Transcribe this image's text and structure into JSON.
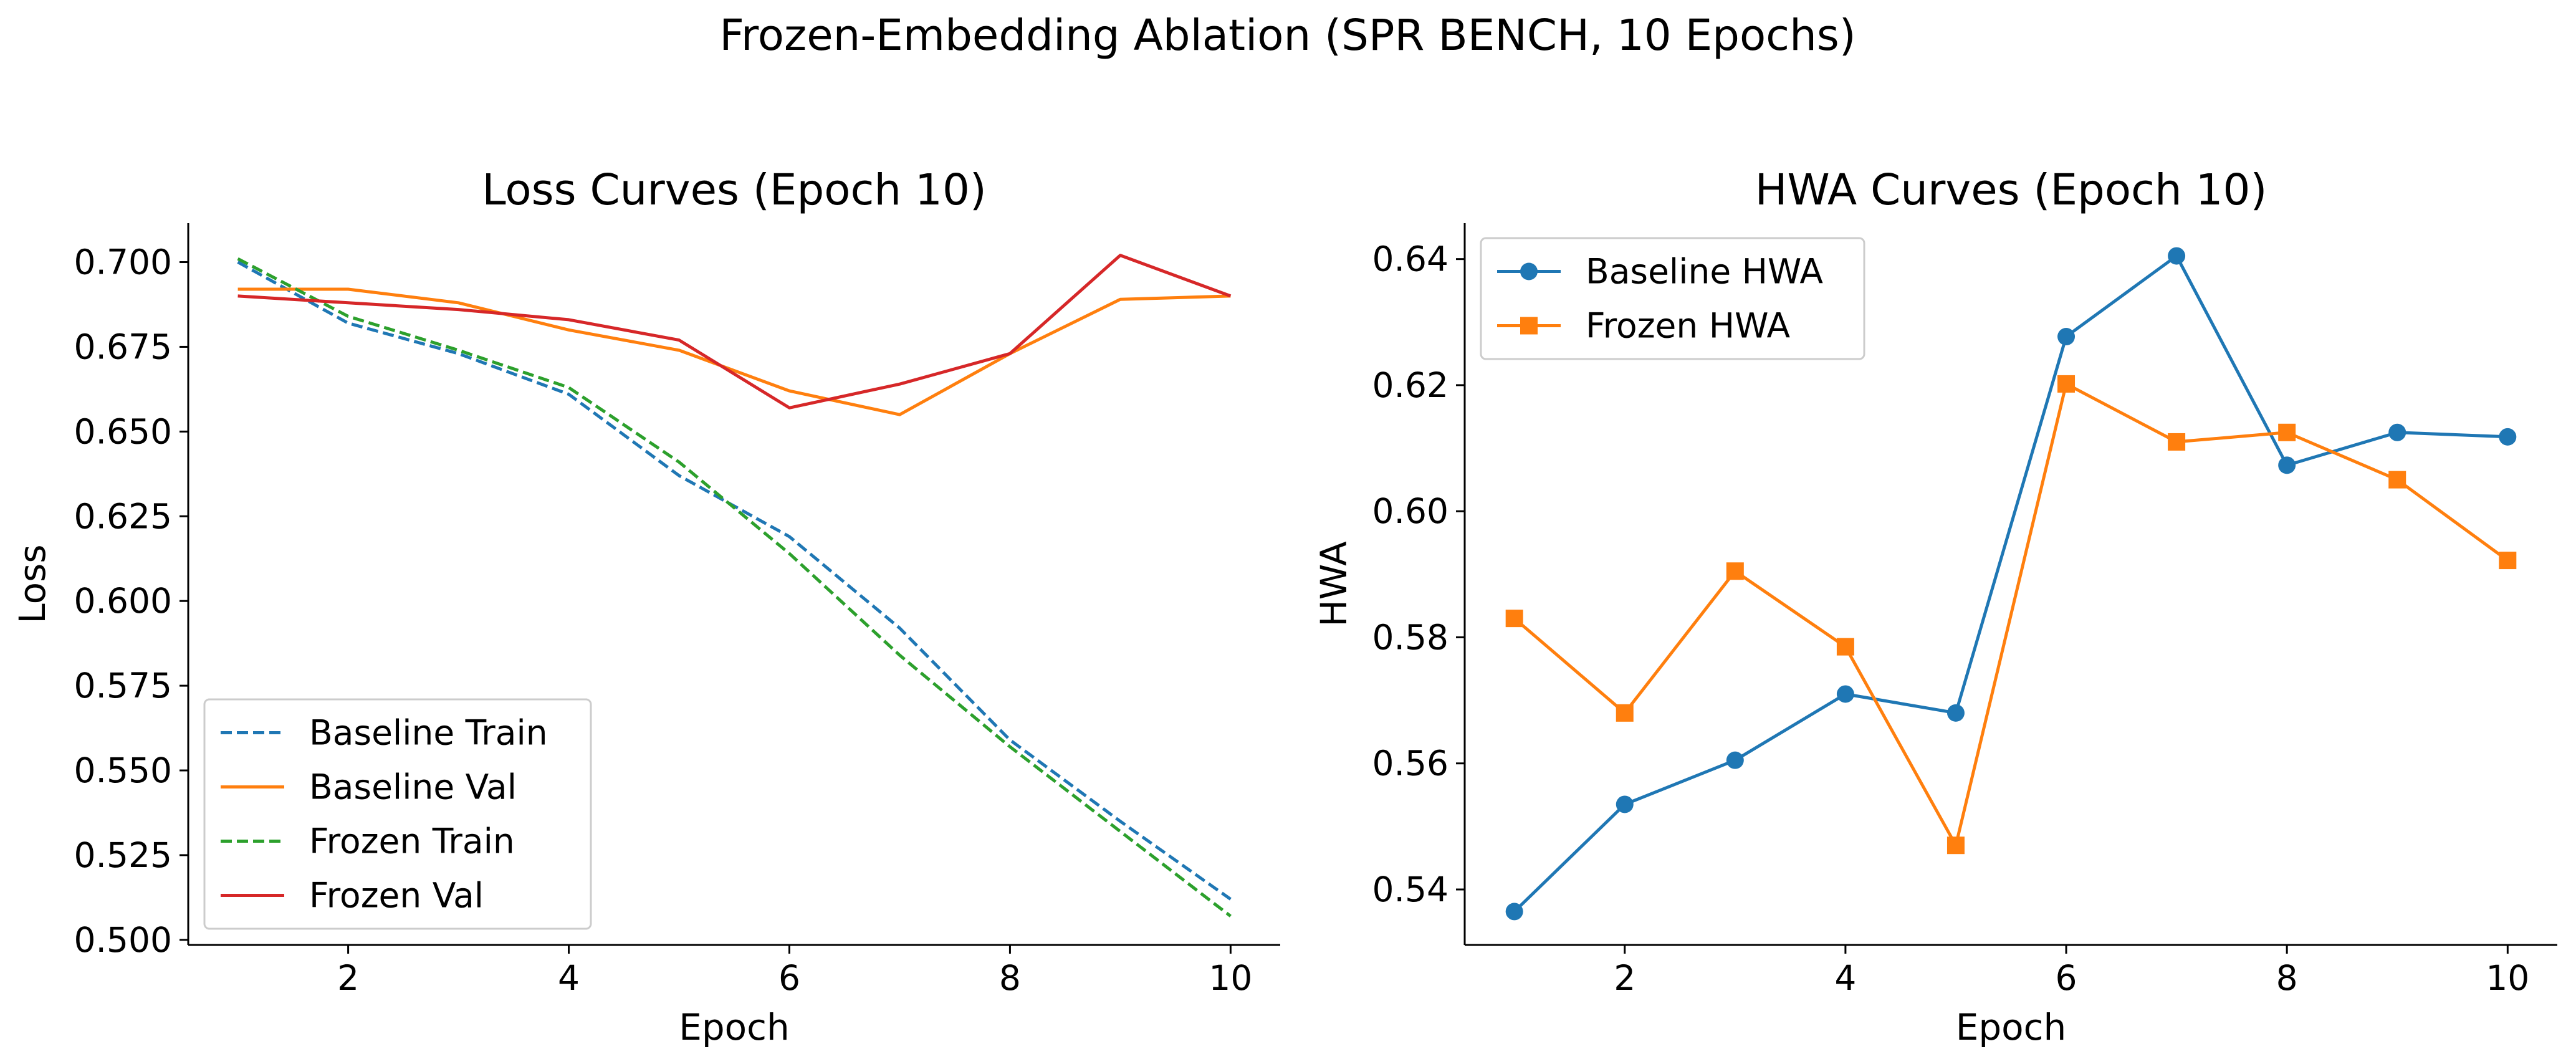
{
  "figure": {
    "suptitle": "Frozen-Embedding Ablation (SPR BENCH, 10 Epochs)"
  },
  "colors": {
    "blue": "#1f77b4",
    "orange": "#ff7f0e",
    "green": "#2ca02c",
    "red": "#d62728"
  },
  "chart_data": [
    {
      "type": "line",
      "title": "Loss Curves (Epoch 10)",
      "xlabel": "Epoch",
      "ylabel": "Loss",
      "xlim": [
        0.55,
        10.45
      ],
      "ylim": [
        0.4985,
        0.7115
      ],
      "xticks": [
        2,
        4,
        6,
        8,
        10
      ],
      "yticks": [
        0.5,
        0.525,
        0.55,
        0.575,
        0.6,
        0.625,
        0.65,
        0.675,
        0.7
      ],
      "ytick_labels": [
        "0.500",
        "0.525",
        "0.550",
        "0.575",
        "0.600",
        "0.625",
        "0.650",
        "0.675",
        "0.700"
      ],
      "legend": "lower-left",
      "grid": false,
      "x": [
        1,
        2,
        3,
        4,
        5,
        6,
        7,
        8,
        9,
        10
      ],
      "series": [
        {
          "name": "Baseline Train",
          "color": "#1f77b4",
          "dash": true,
          "values": [
            0.7,
            0.682,
            0.673,
            0.661,
            0.637,
            0.619,
            0.592,
            0.559,
            0.535,
            0.512
          ]
        },
        {
          "name": "Baseline Val",
          "color": "#ff7f0e",
          "dash": false,
          "values": [
            0.692,
            0.692,
            0.688,
            0.68,
            0.674,
            0.662,
            0.655,
            0.673,
            0.689,
            0.69
          ]
        },
        {
          "name": "Frozen Train",
          "color": "#2ca02c",
          "dash": true,
          "values": [
            0.701,
            0.684,
            0.674,
            0.663,
            0.641,
            0.614,
            0.584,
            0.557,
            0.532,
            0.507
          ]
        },
        {
          "name": "Frozen Val",
          "color": "#d62728",
          "dash": false,
          "values": [
            0.69,
            0.688,
            0.686,
            0.683,
            0.677,
            0.657,
            0.664,
            0.673,
            0.702,
            0.69
          ]
        }
      ]
    },
    {
      "type": "line",
      "title": "HWA Curves (Epoch 10)",
      "xlabel": "Epoch",
      "ylabel": "HWA",
      "xlim": [
        0.55,
        10.45
      ],
      "ylim": [
        0.5312,
        0.6457
      ],
      "xticks": [
        2,
        4,
        6,
        8,
        10
      ],
      "yticks": [
        0.54,
        0.56,
        0.58,
        0.6,
        0.62,
        0.64
      ],
      "ytick_labels": [
        "0.54",
        "0.56",
        "0.58",
        "0.60",
        "0.62",
        "0.64"
      ],
      "legend": "upper-left",
      "grid": false,
      "x": [
        1,
        2,
        3,
        4,
        5,
        6,
        7,
        8,
        9,
        10
      ],
      "series": [
        {
          "name": "Baseline HWA",
          "color": "#1f77b4",
          "marker": "circle",
          "values": [
            0.5365,
            0.5535,
            0.5605,
            0.571,
            0.568,
            0.6277,
            0.6405,
            0.6073,
            0.6125,
            0.6118
          ]
        },
        {
          "name": "Frozen HWA",
          "color": "#ff7f0e",
          "marker": "square",
          "values": [
            0.583,
            0.568,
            0.5905,
            0.5785,
            0.547,
            0.6202,
            0.611,
            0.6125,
            0.605,
            0.5922
          ]
        }
      ]
    }
  ]
}
